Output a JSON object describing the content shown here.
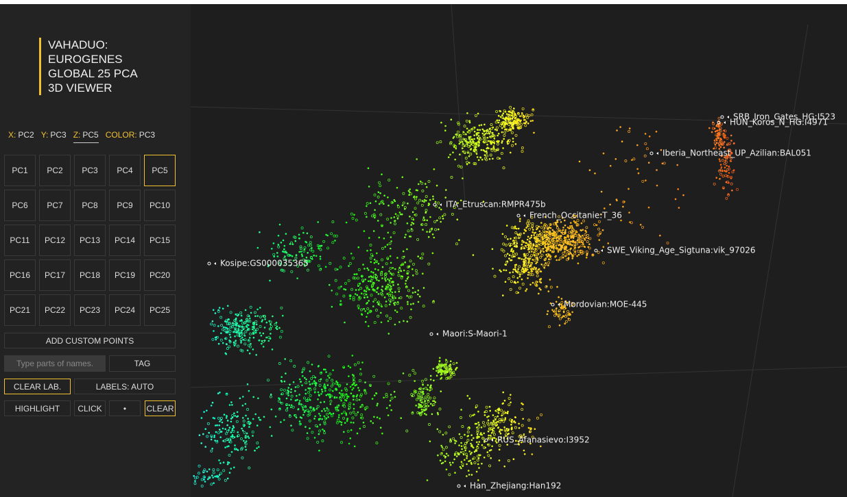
{
  "header": {
    "title_lines": [
      "VAHADUO:",
      "EUROGENES",
      "GLOBAL 25 PCA",
      "3D VIEWER"
    ]
  },
  "axes": [
    {
      "label": "X:",
      "value": "PC2"
    },
    {
      "label": "Y:",
      "value": "PC3"
    },
    {
      "label": "Z:",
      "value": "PC5"
    },
    {
      "label": "COLOR:",
      "value": "PC3"
    }
  ],
  "pc_buttons": [
    "PC1",
    "PC2",
    "PC3",
    "PC4",
    "PC5",
    "PC6",
    "PC7",
    "PC8",
    "PC9",
    "PC10",
    "PC11",
    "PC12",
    "PC13",
    "PC14",
    "PC15",
    "PC16",
    "PC17",
    "PC18",
    "PC19",
    "PC20",
    "PC21",
    "PC22",
    "PC23",
    "PC24",
    "PC25"
  ],
  "controls": {
    "add_custom": "ADD CUSTOM POINTS",
    "search_placeholder": "Type parts of names.",
    "tag": "TAG",
    "clear_labels": "CLEAR LAB.",
    "labels_mode": "LABELS: AUTO",
    "highlight": "HIGHLIGHT",
    "click": "CLICK",
    "dot": "•",
    "clear": "CLEAR"
  },
  "plot_labels": [
    "SRB_Iron_Gates_HG:I523",
    "HUN_Koros_N_HG:I4971",
    "Iberia_Northeast_UP_Azilian:BAL051",
    "ITA_Etruscan:RMPR475b",
    "French_Occitanie:T_36",
    "SWE_Viking_Age_Sigtuna:vik_97026",
    "Kosipe:GS000035365",
    "Mordovian:MOE-445",
    "Maori:S-Maori-1",
    "RUS_Afanasievo:I3952",
    "Han_Zhejiang:Han192"
  ]
}
